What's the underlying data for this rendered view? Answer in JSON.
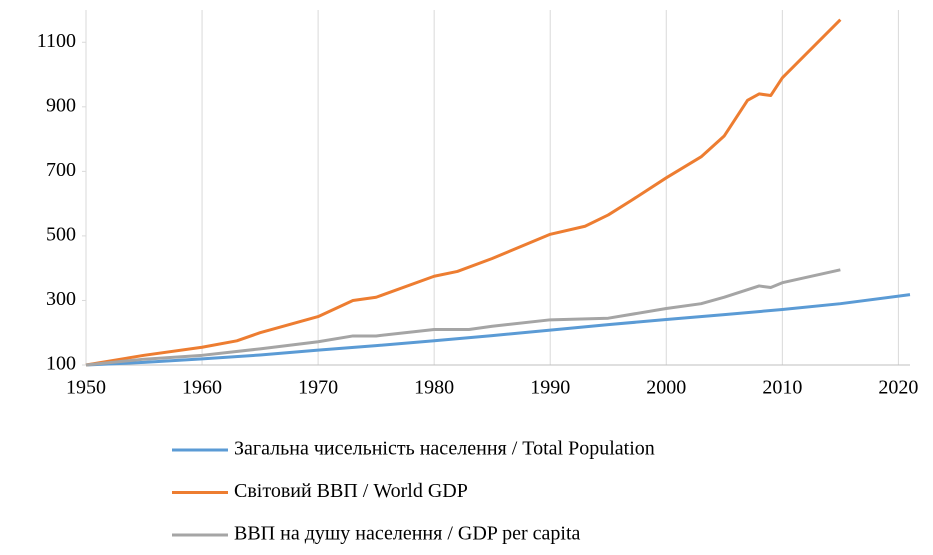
{
  "chart_data": {
    "type": "line",
    "xlim": [
      1950,
      2021
    ],
    "xticks": [
      1950,
      1960,
      1970,
      1980,
      1990,
      2000,
      2010,
      2020
    ],
    "ylim": [
      100,
      1200
    ],
    "yticks": [
      100,
      300,
      500,
      700,
      900,
      1100
    ],
    "grid": "x",
    "legend": "bottom",
    "series": [
      {
        "name": "Загальна чисельність населення / Total Population",
        "color": "#5b9bd5",
        "x": [
          1950,
          1955,
          1960,
          1965,
          1970,
          1975,
          1980,
          1985,
          1990,
          1995,
          2000,
          2005,
          2010,
          2015,
          2021
        ],
        "values": [
          100,
          108,
          119,
          131,
          146,
          160,
          175,
          191,
          208,
          225,
          241,
          256,
          272,
          290,
          318
        ]
      },
      {
        "name": "Світовий ВВП / World GDP",
        "color": "#ed7d31",
        "x": [
          1950,
          1955,
          1960,
          1963,
          1965,
          1970,
          1973,
          1975,
          1980,
          1982,
          1985,
          1990,
          1993,
          1995,
          1997,
          2000,
          2003,
          2005,
          2007,
          2008,
          2009,
          2010,
          2015
        ],
        "values": [
          100,
          130,
          155,
          175,
          200,
          250,
          300,
          310,
          375,
          390,
          430,
          505,
          530,
          565,
          610,
          680,
          745,
          810,
          920,
          940,
          935,
          990,
          1170
        ]
      },
      {
        "name": "ВВП на душу населення / GDP per capita",
        "color": "#a5a5a5",
        "x": [
          1950,
          1955,
          1960,
          1965,
          1970,
          1973,
          1975,
          1980,
          1983,
          1985,
          1990,
          1995,
          2000,
          2003,
          2005,
          2008,
          2009,
          2010,
          2015
        ],
        "values": [
          100,
          118,
          130,
          150,
          172,
          190,
          190,
          210,
          210,
          220,
          240,
          245,
          275,
          290,
          310,
          345,
          340,
          355,
          395
        ]
      }
    ]
  }
}
